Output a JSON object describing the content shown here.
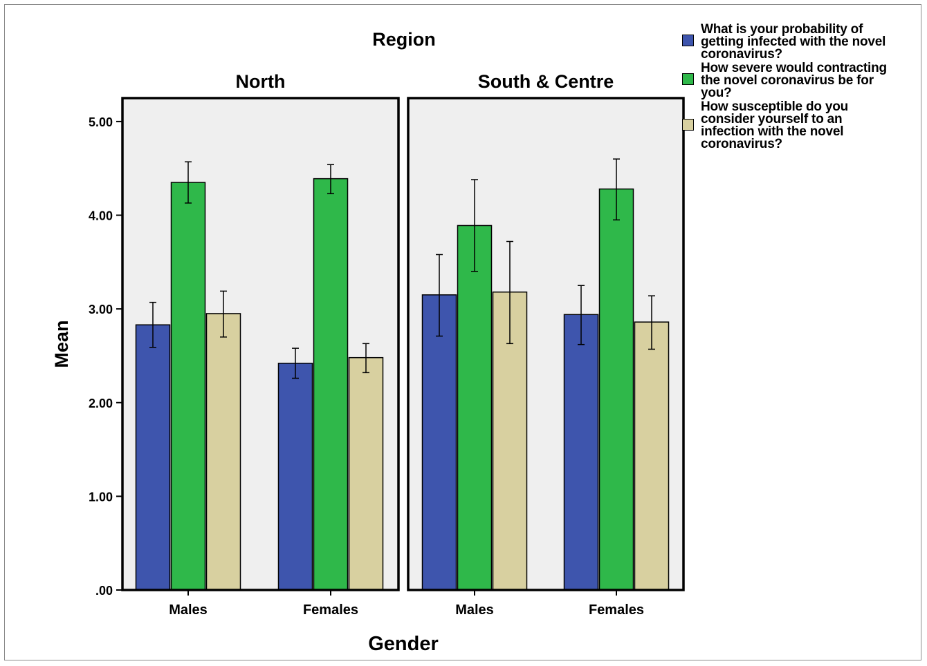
{
  "chart_data": {
    "type": "bar",
    "title": "Region",
    "xlabel": "Gender",
    "ylabel": "Mean",
    "ylim": [
      0,
      5.25
    ],
    "yticks": [
      ".00",
      "1.00",
      "2.00",
      "3.00",
      "4.00",
      "5.00"
    ],
    "panels": [
      {
        "name": "North",
        "categories": [
          "Males",
          "Females"
        ],
        "series": [
          {
            "values": [
              2.83,
              2.42
            ],
            "error_low": [
              2.59,
              2.26
            ],
            "error_high": [
              3.07,
              2.58
            ]
          },
          {
            "values": [
              4.35,
              4.39
            ],
            "error_low": [
              4.13,
              4.23
            ],
            "error_high": [
              4.57,
              4.54
            ]
          },
          {
            "values": [
              2.95,
              2.48
            ],
            "error_low": [
              2.7,
              2.32
            ],
            "error_high": [
              3.19,
              2.63
            ]
          }
        ]
      },
      {
        "name": "South & Centre",
        "categories": [
          "Males",
          "Females"
        ],
        "series": [
          {
            "values": [
              3.15,
              2.94
            ],
            "error_low": [
              2.71,
              2.62
            ],
            "error_high": [
              3.58,
              3.25
            ]
          },
          {
            "values": [
              3.89,
              4.28
            ],
            "error_low": [
              3.4,
              3.95
            ],
            "error_high": [
              4.38,
              4.6
            ]
          },
          {
            "values": [
              3.18,
              2.86
            ],
            "error_low": [
              2.63,
              2.57
            ],
            "error_high": [
              3.72,
              3.14
            ]
          }
        ]
      }
    ],
    "legend": {
      "position": "top-right",
      "entries": [
        {
          "label": "What is your probability of getting infected with the novel coronavirus?",
          "color": "#3e55ad"
        },
        {
          "label": "How severe would contracting the novel coronavirus be for you?",
          "color": "#2fb84a"
        },
        {
          "label": "How susceptible do you consider yourself to an infection with the novel coronavirus?",
          "color": "#d8d0a0"
        }
      ]
    },
    "grid": false,
    "error_bars": true
  }
}
